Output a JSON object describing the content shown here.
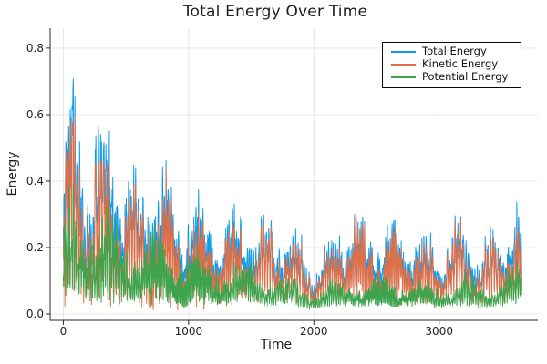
{
  "chart_data": {
    "type": "line",
    "title": "Total Energy Over Time",
    "xlabel": "Time",
    "ylabel": "Energy",
    "xlim": [
      -105,
      3788
    ],
    "ylim": [
      -0.019,
      0.86
    ],
    "x_data_range": [
      0,
      3660
    ],
    "sample_step": 2.5,
    "noise_seed": 1234567,
    "xticks": [
      0,
      1000,
      2000,
      3000
    ],
    "xtick_labels": [
      "0",
      "1000",
      "2000",
      "3000"
    ],
    "yticks": [
      0.0,
      0.2,
      0.4,
      0.6,
      0.8
    ],
    "ytick_labels": [
      "0.0",
      "0.2",
      "0.4",
      "0.6",
      "0.8"
    ],
    "grid": {
      "show": true,
      "color": "#e4e4e4"
    },
    "axis_color": "#2a2a2a",
    "text_color": "#1c1c1c",
    "legend": {
      "position": "top-right",
      "border_color": "#0a0a0a",
      "background": "#ffffff"
    },
    "series": [
      {
        "name": "Total Energy",
        "color": "#0f9cee",
        "envelope_keypoints": [
          [
            0,
            0.45
          ],
          [
            50,
            0.83
          ],
          [
            100,
            0.68
          ],
          [
            150,
            0.6
          ],
          [
            200,
            0.64
          ],
          [
            300,
            0.62
          ],
          [
            400,
            0.56
          ],
          [
            500,
            0.57
          ],
          [
            600,
            0.46
          ],
          [
            700,
            0.45
          ],
          [
            780,
            0.51
          ],
          [
            850,
            0.44
          ],
          [
            900,
            0.43
          ],
          [
            1000,
            0.41
          ],
          [
            1100,
            0.37
          ],
          [
            1200,
            0.38
          ],
          [
            1300,
            0.33
          ],
          [
            1400,
            0.35
          ],
          [
            1500,
            0.31
          ],
          [
            1600,
            0.32
          ],
          [
            1700,
            0.32
          ],
          [
            1800,
            0.31
          ],
          [
            1900,
            0.25
          ],
          [
            2000,
            0.2
          ],
          [
            2100,
            0.24
          ],
          [
            2200,
            0.31
          ],
          [
            2300,
            0.38
          ],
          [
            2400,
            0.3
          ],
          [
            2500,
            0.29
          ],
          [
            2600,
            0.3
          ],
          [
            2700,
            0.29
          ],
          [
            2800,
            0.3
          ],
          [
            2900,
            0.24
          ],
          [
            3000,
            0.25
          ],
          [
            3100,
            0.31
          ],
          [
            3200,
            0.3
          ],
          [
            3300,
            0.24
          ],
          [
            3400,
            0.27
          ],
          [
            3500,
            0.3
          ],
          [
            3600,
            0.35
          ],
          [
            3660,
            0.34
          ]
        ]
      },
      {
        "name": "Kinetic Energy",
        "color": "#e26e45",
        "envelope_keypoints": [
          [
            0,
            0.4
          ],
          [
            50,
            0.78
          ],
          [
            100,
            0.63
          ],
          [
            150,
            0.56
          ],
          [
            200,
            0.6
          ],
          [
            300,
            0.58
          ],
          [
            400,
            0.52
          ],
          [
            500,
            0.53
          ],
          [
            600,
            0.42
          ],
          [
            700,
            0.41
          ],
          [
            780,
            0.47
          ],
          [
            850,
            0.4
          ],
          [
            900,
            0.39
          ],
          [
            1000,
            0.37
          ],
          [
            1100,
            0.34
          ],
          [
            1200,
            0.34
          ],
          [
            1300,
            0.3
          ],
          [
            1400,
            0.32
          ],
          [
            1500,
            0.28
          ],
          [
            1600,
            0.29
          ],
          [
            1700,
            0.29
          ],
          [
            1800,
            0.28
          ],
          [
            1900,
            0.22
          ],
          [
            2000,
            0.17
          ],
          [
            2100,
            0.21
          ],
          [
            2200,
            0.28
          ],
          [
            2300,
            0.35
          ],
          [
            2400,
            0.27
          ],
          [
            2500,
            0.26
          ],
          [
            2600,
            0.27
          ],
          [
            2700,
            0.26
          ],
          [
            2800,
            0.27
          ],
          [
            2900,
            0.21
          ],
          [
            3000,
            0.22
          ],
          [
            3100,
            0.28
          ],
          [
            3200,
            0.27
          ],
          [
            3300,
            0.21
          ],
          [
            3400,
            0.24
          ],
          [
            3500,
            0.27
          ],
          [
            3600,
            0.32
          ],
          [
            3660,
            0.31
          ]
        ]
      },
      {
        "name": "Potential Energy",
        "color": "#3ca44d",
        "envelope_keypoints": [
          [
            0,
            0.3
          ],
          [
            50,
            0.46
          ],
          [
            100,
            0.43
          ],
          [
            150,
            0.41
          ],
          [
            200,
            0.4
          ],
          [
            300,
            0.37
          ],
          [
            400,
            0.35
          ],
          [
            500,
            0.32
          ],
          [
            600,
            0.3
          ],
          [
            700,
            0.28
          ],
          [
            780,
            0.27
          ],
          [
            850,
            0.26
          ],
          [
            900,
            0.25
          ],
          [
            1000,
            0.22
          ],
          [
            1100,
            0.21
          ],
          [
            1200,
            0.2
          ],
          [
            1300,
            0.18
          ],
          [
            1400,
            0.18
          ],
          [
            1500,
            0.16
          ],
          [
            1600,
            0.15
          ],
          [
            1700,
            0.14
          ],
          [
            1800,
            0.13
          ],
          [
            1900,
            0.11
          ],
          [
            2000,
            0.09
          ],
          [
            2100,
            0.1
          ],
          [
            2200,
            0.11
          ],
          [
            2300,
            0.13
          ],
          [
            2400,
            0.12
          ],
          [
            2500,
            0.12
          ],
          [
            2600,
            0.13
          ],
          [
            2700,
            0.12
          ],
          [
            2800,
            0.12
          ],
          [
            2900,
            0.1
          ],
          [
            3000,
            0.1
          ],
          [
            3100,
            0.12
          ],
          [
            3200,
            0.12
          ],
          [
            3300,
            0.1
          ],
          [
            3400,
            0.11
          ],
          [
            3500,
            0.13
          ],
          [
            3600,
            0.16
          ],
          [
            3660,
            0.15
          ]
        ]
      }
    ]
  }
}
